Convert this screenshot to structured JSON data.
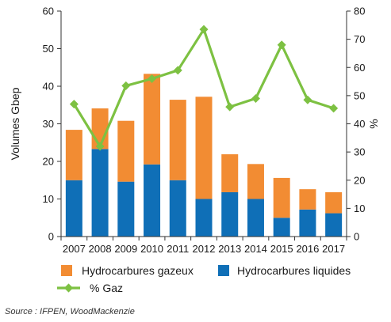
{
  "chart_data": {
    "type": "bar",
    "categories": [
      "2007",
      "2008",
      "2009",
      "2010",
      "2011",
      "2012",
      "2013",
      "2014",
      "2015",
      "2016",
      "2017"
    ],
    "series": [
      {
        "name": "Hydrocarbures liquides",
        "type": "bar",
        "stack": "volumes",
        "axis": "left",
        "color": "#0f6fb7",
        "values": [
          15,
          23.3,
          14.6,
          19.2,
          15,
          10,
          11.8,
          10,
          5,
          7.2,
          6.2
        ]
      },
      {
        "name": "Hydrocarbures gazeux",
        "type": "bar",
        "stack": "volumes",
        "axis": "left",
        "color": "#f28c33",
        "values": [
          13.4,
          10.8,
          16.2,
          24.1,
          21.4,
          27.2,
          10.1,
          9.3,
          10.6,
          5.4,
          5.6
        ]
      },
      {
        "name": "% Gaz",
        "type": "line",
        "axis": "right",
        "color": "#7dc142",
        "values": [
          47,
          32,
          53.5,
          56,
          59,
          73.5,
          46,
          49,
          68,
          48.5,
          45.5
        ]
      }
    ],
    "ylabel": "Volumes Gbep",
    "y2label": "%",
    "ylim": [
      0,
      60
    ],
    "y2lim": [
      0,
      80
    ],
    "yticks": [
      0,
      10,
      20,
      30,
      40,
      50,
      60
    ],
    "y2ticks": [
      0,
      10,
      20,
      30,
      40,
      50,
      60,
      70,
      80
    ],
    "grid": false,
    "legend_placement": "bottom",
    "source": "Source : IFPEN, WoodMackenzie"
  }
}
